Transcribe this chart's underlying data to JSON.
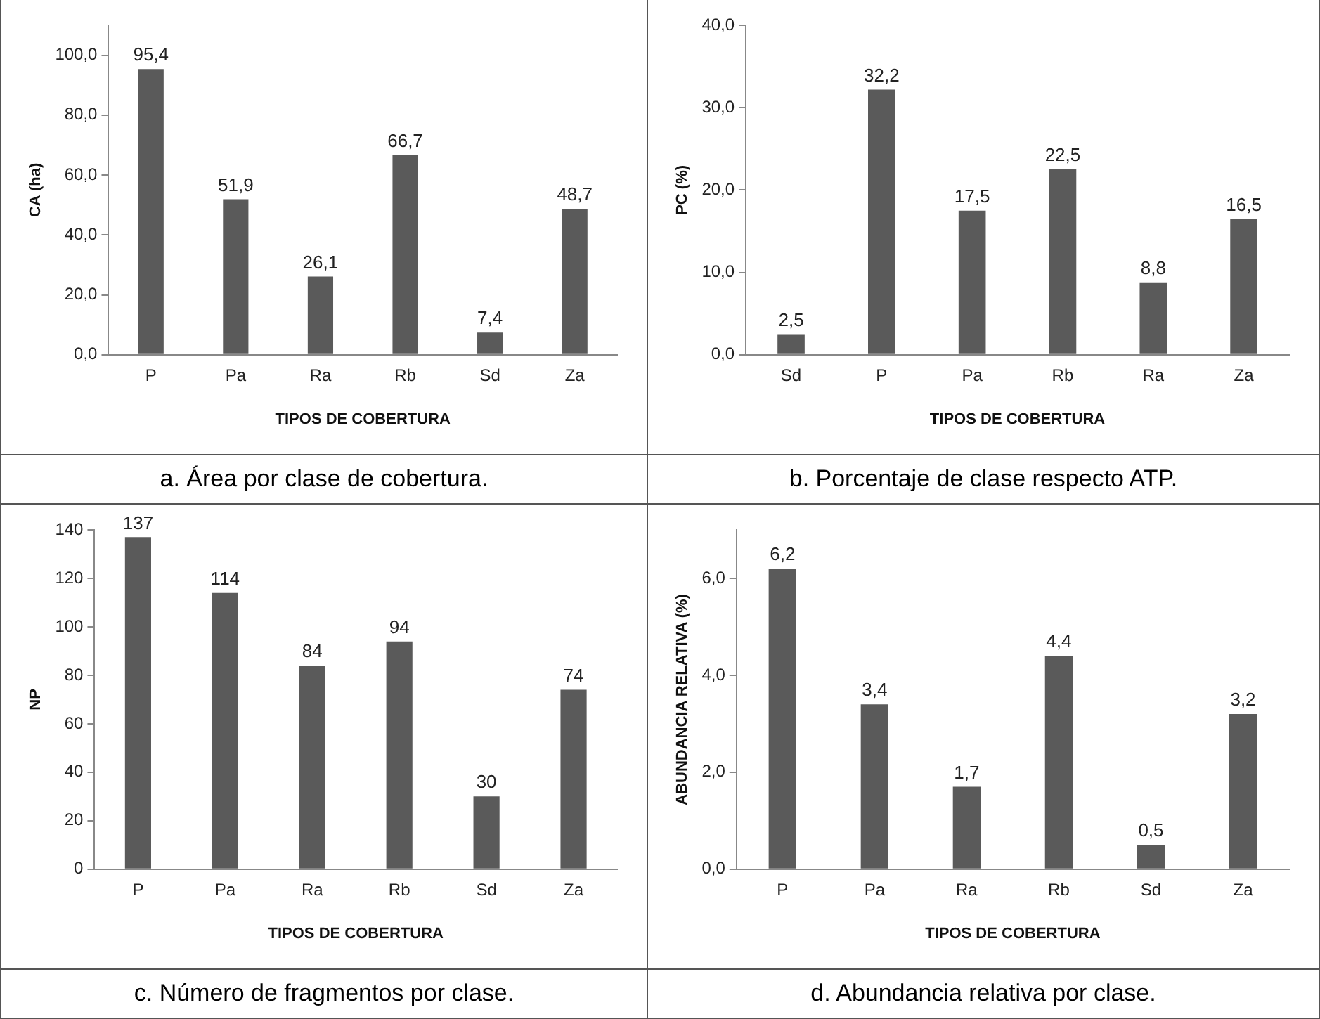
{
  "chart_data": [
    {
      "type": "bar",
      "xlabel": "TIPOS DE COBERTURA",
      "ylabel": "CA (ha)",
      "categories": [
        "P",
        "Pa",
        "Ra",
        "Rb",
        "Sd",
        "Za"
      ],
      "color": "#5a5a5a",
      "values": [
        95.4,
        51.9,
        26.1,
        66.7,
        7.4,
        48.7
      ],
      "value_labels": [
        "95,4",
        "51,9",
        "26,1",
        "66,7",
        "7,4",
        "48,7"
      ],
      "ylim": [
        0,
        110
      ],
      "yticks": [
        {
          "value": 0,
          "label": "0,0"
        },
        {
          "value": 20,
          "label": "20,0"
        },
        {
          "value": 40,
          "label": "40,0"
        },
        {
          "value": 60,
          "label": "60,0"
        },
        {
          "value": 80,
          "label": "80,0"
        },
        {
          "value": 100,
          "label": "100,0"
        }
      ],
      "grid": false,
      "legend": false,
      "annotations": [
        "a.  Área por clase de cobertura."
      ]
    },
    {
      "type": "bar",
      "xlabel": "TIPOS DE COBERTURA",
      "ylabel": "PC (%)",
      "categories": [
        "Sd",
        "P",
        "Pa",
        "Rb",
        "Ra",
        "Za"
      ],
      "color": "#5a5a5a",
      "values": [
        2.5,
        32.2,
        17.5,
        22.5,
        8.8,
        16.5
      ],
      "value_labels": [
        "2,5",
        "32,2",
        "17,5",
        "22,5",
        "8,8",
        "16,5"
      ],
      "ylim": [
        0,
        40
      ],
      "yticks": [
        {
          "value": 0,
          "label": "0,0"
        },
        {
          "value": 10,
          "label": "10,0"
        },
        {
          "value": 20,
          "label": "20,0"
        },
        {
          "value": 30,
          "label": "30,0"
        },
        {
          "value": 40,
          "label": "40,0"
        }
      ],
      "grid": false,
      "legend": false,
      "annotations": [
        "b.  Porcentaje de clase respecto ATP."
      ]
    },
    {
      "type": "bar",
      "xlabel": "TIPOS DE COBERTURA",
      "ylabel": "NP",
      "categories": [
        "P",
        "Pa",
        "Ra",
        "Rb",
        "Sd",
        "Za"
      ],
      "color": "#5a5a5a",
      "values": [
        137,
        114,
        84,
        94,
        30,
        74
      ],
      "data_labels": true,
      "ylim": [
        0,
        140
      ],
      "yticks": [
        0,
        20,
        40,
        60,
        80,
        100,
        120,
        140
      ],
      "grid": false,
      "legend": false,
      "annotations": [
        "c. Número de fragmentos por clase."
      ]
    },
    {
      "type": "bar",
      "xlabel": "TIPOS DE COBERTURA",
      "ylabel": "ABUNDANCIA RELATIVA (%)",
      "categories": [
        "P",
        "Pa",
        "Ra",
        "Rb",
        "Sd",
        "Za"
      ],
      "color": "#5a5a5a",
      "values": [
        6.2,
        3.4,
        1.7,
        4.4,
        0.5,
        3.2
      ],
      "value_labels": [
        "6,2",
        "3,4",
        "1,7",
        "4,4",
        "0,5",
        "3,2"
      ],
      "ylim": [
        0,
        7
      ],
      "yticks": [
        {
          "value": 0,
          "label": "0,0"
        },
        {
          "value": 2,
          "label": "2,0"
        },
        {
          "value": 4,
          "label": "4,0"
        },
        {
          "value": 6,
          "label": "6,0"
        }
      ],
      "grid": false,
      "legend": false,
      "annotations": [
        "d. Abundancia relativa por clase."
      ]
    }
  ]
}
